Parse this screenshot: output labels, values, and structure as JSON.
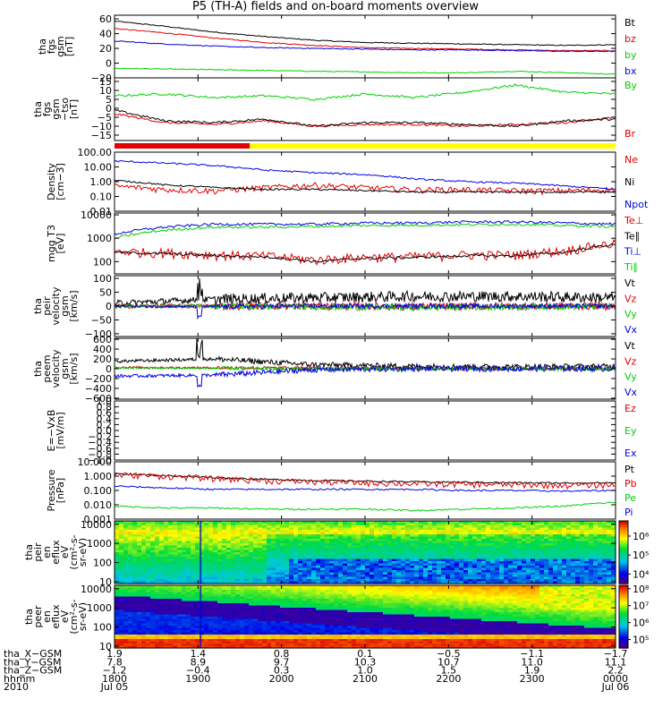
{
  "title": "P5 (TH-A) fields and on-board moments overview",
  "colors": {
    "black": "#000000",
    "red": "#e00000",
    "green": "#00d000",
    "blue": "#0000e0",
    "yellow": "#ffff00"
  },
  "chart_data": [
    {
      "type": "line",
      "id": "fgs-gsm",
      "ylabel": [
        "tha",
        "fgs",
        "gsm",
        "[nT]"
      ],
      "ylim": [
        -20,
        65
      ],
      "yticks": [
        60,
        40,
        20,
        0,
        -20
      ],
      "ytick_labels": [
        "60",
        "40",
        "20",
        "0",
        "−20"
      ],
      "series": [
        {
          "name": "Bt",
          "color": "black",
          "x": [
            0,
            0.1,
            0.2,
            0.3,
            0.4,
            0.5,
            0.6,
            0.7,
            0.8,
            0.9,
            1.0
          ],
          "y": [
            57,
            50,
            42,
            36,
            31,
            28,
            27,
            26,
            25,
            24,
            25
          ]
        },
        {
          "name": "bz",
          "color": "red",
          "x": [
            0,
            0.1,
            0.2,
            0.3,
            0.4,
            0.5,
            0.6,
            0.7,
            0.8,
            0.9,
            1.0
          ],
          "y": [
            47,
            41,
            34,
            28,
            24,
            21,
            20,
            19,
            18,
            17,
            17
          ]
        },
        {
          "name": "by",
          "color": "green",
          "x": [
            0,
            0.1,
            0.2,
            0.3,
            0.4,
            0.5,
            0.6,
            0.7,
            0.8,
            0.9,
            1.0
          ],
          "y": [
            -7,
            -8,
            -9,
            -10,
            -11,
            -12,
            -13,
            -13,
            -11,
            -13,
            -15
          ]
        },
        {
          "name": "bx",
          "color": "blue",
          "x": [
            0,
            0.1,
            0.2,
            0.3,
            0.4,
            0.5,
            0.6,
            0.7,
            0.8,
            0.9,
            1.0
          ],
          "y": [
            30,
            26,
            23,
            21,
            20,
            19,
            18,
            18,
            17,
            16,
            16
          ]
        }
      ]
    },
    {
      "type": "line",
      "id": "fgs-gsm-sm",
      "ylabel": [
        "tha",
        "fgs",
        "gsm",
        "−tso",
        "[nT]"
      ],
      "ylim": [
        -18,
        17
      ],
      "yticks": [
        15,
        10,
        5,
        0,
        -5,
        -10,
        -15
      ],
      "ytick_labels": [
        "15",
        "10",
        "5",
        "0",
        "−5",
        "−10",
        "−15"
      ],
      "series": [
        {
          "name": "By",
          "color": "green",
          "x": [
            0,
            0.1,
            0.2,
            0.3,
            0.4,
            0.5,
            0.6,
            0.7,
            0.8,
            0.9,
            1.0
          ],
          "y": [
            7,
            8,
            6,
            7,
            5,
            8,
            6,
            9,
            13,
            9,
            8
          ]
        },
        {
          "name": "Br",
          "color": "red",
          "x": [
            0,
            0.1,
            0.2,
            0.3,
            0.4,
            0.5,
            0.6,
            0.7,
            0.8,
            0.9,
            1.0
          ],
          "y": [
            -3,
            -8,
            -9,
            -7,
            -10,
            -9,
            -9,
            -10,
            -9,
            -8,
            -5
          ]
        },
        {
          "name": "",
          "color": "black",
          "x": [
            0,
            0.1,
            0.2,
            0.3,
            0.4,
            0.5,
            0.6,
            0.7,
            0.8,
            0.9,
            1.0
          ],
          "y": [
            -1,
            -7,
            -8,
            -6,
            -10,
            -8,
            -8,
            -9,
            -10,
            -7,
            -6
          ]
        }
      ]
    },
    {
      "type": "bar",
      "id": "mode-bar",
      "segments": [
        {
          "from": 0,
          "to": 0.27,
          "color": "red"
        },
        {
          "from": 0.27,
          "to": 1.0,
          "color": "yellow"
        }
      ]
    },
    {
      "type": "line",
      "id": "density",
      "log": true,
      "ylabel": [
        "Density",
        "[cm−3]"
      ],
      "ylim": [
        0.01,
        100
      ],
      "yticks": [
        100,
        10,
        1,
        0.1,
        0.01
      ],
      "ytick_labels": [
        "100.00",
        "10.00",
        "1.00",
        "0.10",
        "0.01"
      ],
      "series": [
        {
          "name": "Ne",
          "color": "red",
          "x": [
            0,
            0.1,
            0.2,
            0.3,
            0.4,
            0.5,
            0.6,
            0.7,
            0.8,
            0.9,
            1.0
          ],
          "y": [
            0.5,
            0.3,
            0.25,
            0.4,
            0.6,
            0.4,
            0.3,
            0.3,
            0.25,
            0.25,
            0.3
          ]
        },
        {
          "name": "Ni",
          "color": "black",
          "x": [
            0,
            0.1,
            0.2,
            0.3,
            0.4,
            0.5,
            0.6,
            0.7,
            0.8,
            0.9,
            1.0
          ],
          "y": [
            1.2,
            0.6,
            0.4,
            0.3,
            0.3,
            0.25,
            0.2,
            0.2,
            0.2,
            0.2,
            0.2
          ]
        },
        {
          "name": "Npot",
          "color": "blue",
          "x": [
            0,
            0.1,
            0.2,
            0.3,
            0.4,
            0.5,
            0.6,
            0.7,
            0.8,
            0.9,
            1.0
          ],
          "y": [
            25,
            18,
            12,
            6,
            4,
            3,
            1.5,
            1,
            0.8,
            0.5,
            0.3
          ]
        }
      ]
    },
    {
      "type": "line",
      "id": "temperature",
      "log": true,
      "ylabel": [
        "mgg T3",
        "[eV]"
      ],
      "ylim": [
        30,
        12000
      ],
      "yticks": [
        10000,
        1000,
        100
      ],
      "ytick_labels": [
        "10000",
        "1000",
        "100"
      ],
      "series": [
        {
          "name": "Te⊥",
          "color": "red",
          "x": [
            0,
            0.1,
            0.2,
            0.3,
            0.4,
            0.5,
            0.6,
            0.7,
            0.8,
            0.9,
            1.0
          ],
          "y": [
            280,
            250,
            200,
            180,
            120,
            160,
            170,
            200,
            200,
            300,
            600
          ]
        },
        {
          "name": "Te∥",
          "color": "black",
          "x": [
            0,
            0.1,
            0.2,
            0.3,
            0.4,
            0.5,
            0.6,
            0.7,
            0.8,
            0.9,
            1.0
          ],
          "y": [
            250,
            220,
            180,
            160,
            100,
            140,
            150,
            180,
            180,
            250,
            550
          ]
        },
        {
          "name": "Ti⊥",
          "color": "blue",
          "x": [
            0,
            0.1,
            0.2,
            0.3,
            0.4,
            0.5,
            0.6,
            0.7,
            0.8,
            0.9,
            1.0
          ],
          "y": [
            1500,
            3000,
            4000,
            4000,
            4000,
            4500,
            4500,
            5000,
            5000,
            4500,
            4000
          ]
        },
        {
          "name": "Ti∥",
          "color": "green",
          "x": [
            0,
            0.1,
            0.2,
            0.3,
            0.4,
            0.5,
            0.6,
            0.7,
            0.8,
            0.9,
            1.0
          ],
          "y": [
            1000,
            2200,
            3000,
            3000,
            3200,
            3500,
            3600,
            3800,
            4000,
            3500,
            3200
          ]
        }
      ]
    },
    {
      "type": "line",
      "id": "peir-velocity",
      "noisy": true,
      "ylabel": [
        "tha",
        "peir",
        "velocity",
        "gsm",
        "[km/s]"
      ],
      "ylim": [
        -110,
        110
      ],
      "yticks": [
        100,
        50,
        0,
        -50,
        -100
      ],
      "ytick_labels": [
        "100",
        "50",
        "0",
        "−50",
        "−100"
      ],
      "series": [
        {
          "name": "Vt",
          "color": "black",
          "x": [
            0,
            0.2,
            0.4,
            0.6,
            0.8,
            1.0
          ],
          "y": [
            10,
            25,
            30,
            35,
            35,
            30
          ],
          "amp": 14
        },
        {
          "name": "Vz",
          "color": "red",
          "x": [
            0,
            0.2,
            0.4,
            0.6,
            0.8,
            1.0
          ],
          "y": [
            0,
            0,
            0,
            -2,
            0,
            0
          ],
          "amp": 10
        },
        {
          "name": "Vy",
          "color": "green",
          "x": [
            0,
            0.2,
            0.4,
            0.6,
            0.8,
            1.0
          ],
          "y": [
            0,
            0,
            -3,
            -5,
            -3,
            0
          ],
          "amp": 8
        },
        {
          "name": "Vx",
          "color": "blue",
          "x": [
            0,
            0.2,
            0.4,
            0.6,
            0.8,
            1.0
          ],
          "y": [
            0,
            -2,
            0,
            0,
            0,
            0
          ],
          "amp": 6
        }
      ]
    },
    {
      "type": "line",
      "id": "peem-velocity",
      "noisy": true,
      "ylabel": [
        "tha",
        "peem",
        "velocity",
        "gsm",
        "[km/s]"
      ],
      "ylim": [
        -620,
        620
      ],
      "yticks": [
        600,
        400,
        200,
        0,
        -200,
        -400,
        -600
      ],
      "ytick_labels": [
        "600",
        "400",
        "200",
        "0",
        "−200",
        "−400",
        "−600"
      ],
      "series": [
        {
          "name": "Vt",
          "color": "black",
          "x": [
            0,
            0.2,
            0.4,
            0.6,
            0.8,
            1.0
          ],
          "y": [
            150,
            200,
            80,
            50,
            40,
            50
          ],
          "amp": 40
        },
        {
          "name": "Vz",
          "color": "red",
          "x": [
            0,
            0.2,
            0.4,
            0.6,
            0.8,
            1.0
          ],
          "y": [
            30,
            20,
            10,
            0,
            0,
            0
          ],
          "amp": 25
        },
        {
          "name": "Vy",
          "color": "green",
          "x": [
            0,
            0.2,
            0.4,
            0.6,
            0.8,
            1.0
          ],
          "y": [
            20,
            10,
            0,
            0,
            0,
            0
          ],
          "amp": 25
        },
        {
          "name": "Vx",
          "color": "blue",
          "x": [
            0,
            0.2,
            0.4,
            0.6,
            0.8,
            1.0
          ],
          "y": [
            -150,
            -130,
            -20,
            0,
            0,
            0
          ],
          "amp": 40
        }
      ]
    },
    {
      "type": "line",
      "id": "efield",
      "ylabel": [
        "E=−VxB",
        "[mV/m]"
      ],
      "ylim": [
        -1,
        1
      ],
      "yticks": [
        1.0,
        0.8,
        0.6,
        0.4,
        0.2,
        0.0,
        -0.2,
        -0.4,
        -0.6,
        -0.8,
        -1.0
      ],
      "ytick_labels": [
        "1.0",
        "0.8",
        "0.6",
        "0.4",
        "0.2",
        "0.0",
        "−0.2",
        "−0.4",
        "−0.6",
        "−0.8",
        "−1.0"
      ],
      "series": [
        {
          "name": "Ez",
          "color": "red",
          "x": [],
          "y": []
        },
        {
          "name": "Ey",
          "color": "green",
          "x": [],
          "y": []
        },
        {
          "name": "Ex",
          "color": "blue",
          "x": [],
          "y": []
        }
      ]
    },
    {
      "type": "line",
      "id": "pressure",
      "log": true,
      "ylabel": [
        "Pressure",
        "[nPa]"
      ],
      "ylim": [
        0.001,
        10
      ],
      "yticks": [
        10,
        1,
        0.1,
        0.01,
        0.001
      ],
      "ytick_labels": [
        "10.000",
        "1.000",
        "0.100",
        "0.010",
        "0.001"
      ],
      "series": [
        {
          "name": "Pt",
          "color": "black",
          "x": [
            0,
            0.1,
            0.2,
            0.3,
            0.4,
            0.5,
            0.6,
            0.7,
            0.8,
            0.9,
            1.0
          ],
          "y": [
            1.5,
            1.1,
            0.8,
            0.6,
            0.5,
            0.45,
            0.4,
            0.38,
            0.35,
            0.33,
            0.35
          ]
        },
        {
          "name": "Pb",
          "color": "red",
          "x": [
            0,
            0.1,
            0.2,
            0.3,
            0.4,
            0.5,
            0.6,
            0.7,
            0.8,
            0.9,
            1.0
          ],
          "y": [
            1.3,
            1.0,
            0.7,
            0.5,
            0.4,
            0.35,
            0.3,
            0.28,
            0.25,
            0.24,
            0.25
          ]
        },
        {
          "name": "Pe",
          "color": "green",
          "x": [
            0,
            0.1,
            0.2,
            0.3,
            0.4,
            0.5,
            0.6,
            0.7,
            0.8,
            0.9,
            1.0
          ],
          "y": [
            0.008,
            0.006,
            0.006,
            0.005,
            0.005,
            0.005,
            0.004,
            0.005,
            0.006,
            0.008,
            0.015
          ]
        },
        {
          "name": "Pi",
          "color": "blue",
          "x": [
            0,
            0.1,
            0.2,
            0.3,
            0.4,
            0.5,
            0.6,
            0.7,
            0.8,
            0.9,
            1.0
          ],
          "y": [
            0.2,
            0.15,
            0.12,
            0.12,
            0.12,
            0.12,
            0.12,
            0.1,
            0.1,
            0.09,
            0.1
          ]
        }
      ]
    },
    {
      "type": "heatmap",
      "id": "peir-eflux",
      "log": true,
      "ylabel": [
        "tha",
        "peir",
        "en",
        "eflux",
        "eV",
        "(cm²-s-",
        "sr-eV)"
      ],
      "ylim": [
        8,
        15000
      ],
      "yticks": [
        10000,
        1000,
        100,
        10
      ],
      "ytick_labels": [
        "10000",
        "1000",
        "100",
        "10"
      ],
      "colorbar": {
        "ticks": [
          6,
          5,
          4
        ],
        "tick_labels": [
          "10⁶",
          "10⁵",
          "10⁴"
        ],
        "range": [
          3.5,
          6.8
        ]
      }
    },
    {
      "type": "heatmap",
      "id": "peer-eflux",
      "log": true,
      "ylabel": [
        "tha",
        "peer",
        "en",
        "eflux",
        "eV",
        "(cm²-s-",
        "sr-eV)"
      ],
      "ylim": [
        8,
        15000
      ],
      "yticks": [
        10000,
        1000,
        100,
        10
      ],
      "ytick_labels": [
        "10000",
        "1000",
        "100",
        "10"
      ],
      "colorbar": {
        "ticks": [
          8,
          7,
          6,
          5
        ],
        "tick_labels": [
          "10⁸",
          "10⁷",
          "10⁶",
          "10⁵"
        ],
        "range": [
          4.5,
          8.2
        ]
      }
    }
  ],
  "ephemeris": {
    "row_labels": [
      "tha_X−GSM",
      "tha_Y−GSM",
      "tha_Z−GSM",
      "hhmm",
      "2010"
    ],
    "columns": [
      [
        "1.9",
        "7.8",
        "−1.2",
        "1800",
        "Jul 05"
      ],
      [
        "1.4",
        "8.9",
        "−0.4",
        "1900",
        ""
      ],
      [
        "0.8",
        "9.7",
        "0.3",
        "2000",
        ""
      ],
      [
        "0.1",
        "10.3",
        "1.0",
        "2100",
        ""
      ],
      [
        "−0.5",
        "10.7",
        "1.5",
        "2200",
        ""
      ],
      [
        "−1.1",
        "11.0",
        "1.9",
        "2300",
        ""
      ],
      [
        "−1.7",
        "11.1",
        "2.2",
        "0000",
        "Jul 06"
      ]
    ]
  }
}
